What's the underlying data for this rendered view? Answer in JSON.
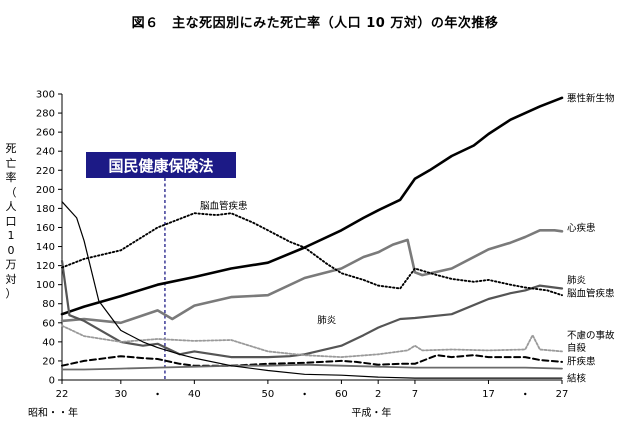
{
  "chart_data": {
    "type": "line",
    "title": "図６　主な死因別にみた死亡率（人口 10 万対）の年次推移",
    "ylabel": "死亡率（人口10万対）",
    "xlabel_showa": "昭和・・年",
    "xlabel_heisei": "平成・年",
    "ylim": [
      0,
      300
    ],
    "yticks": [
      "0",
      "20",
      "40",
      "60",
      "80",
      "100",
      "120",
      "140",
      "160",
      "180",
      "200",
      "220",
      "240",
      "260",
      "280",
      "300"
    ],
    "xlim": [
      1947,
      2015
    ],
    "xticks": [
      {
        "year": 1947,
        "label": "22"
      },
      {
        "year": 1955,
        "label": "30"
      },
      {
        "year": 1965,
        "label": "40"
      },
      {
        "year": 1975,
        "label": "50"
      },
      {
        "year": 1985,
        "label": "60"
      },
      {
        "year": 1990,
        "label": "2"
      },
      {
        "year": 1995,
        "label": "7"
      },
      {
        "year": 2005,
        "label": "17"
      },
      {
        "year": 2015,
        "label": "27"
      }
    ],
    "xdots": [
      1960,
      1980,
      2010
    ],
    "grid": false,
    "annotation": {
      "text": "国民健康保険法",
      "year": 1961
    },
    "series": [
      {
        "name": "悪性新生物",
        "color": "#000000",
        "width": 2.6,
        "dash": "",
        "x": [
          1947,
          1950,
          1955,
          1960,
          1965,
          1970,
          1975,
          1980,
          1985,
          1988,
          1990,
          1993,
          1995,
          1997,
          2000,
          2003,
          2005,
          2008,
          2010,
          2012,
          2015
        ],
        "y": [
          69,
          77,
          88,
          100,
          108,
          117,
          123,
          139,
          157,
          170,
          178,
          189,
          211,
          220,
          235,
          246,
          258,
          273,
          280,
          287,
          296
        ]
      },
      {
        "name": "心疾患",
        "color": "#7a7a7a",
        "width": 2.6,
        "dash": "",
        "x": [
          1947,
          1950,
          1955,
          1960,
          1962,
          1965,
          1970,
          1975,
          1980,
          1985,
          1988,
          1990,
          1992,
          1994,
          1995,
          1996,
          2000,
          2005,
          2008,
          2010,
          2012,
          2014,
          2015
        ],
        "y": [
          62,
          64,
          60,
          73,
          64,
          78,
          87,
          89,
          107,
          117,
          129,
          134,
          142,
          147,
          113,
          110,
          117,
          137,
          144,
          150,
          157,
          157,
          156
        ]
      },
      {
        "name": "肺炎",
        "color": "#555555",
        "width": 2.2,
        "dash": "",
        "x": [
          1947,
          1948,
          1950,
          1955,
          1958,
          1960,
          1963,
          1965,
          1970,
          1975,
          1978,
          1980,
          1985,
          1988,
          1990,
          1993,
          1995,
          2000,
          2005,
          2008,
          2010,
          2012,
          2015
        ],
        "y": [
          125,
          68,
          62,
          40,
          36,
          38,
          27,
          30,
          24,
          24,
          25,
          27,
          36,
          47,
          55,
          64,
          65,
          69,
          85,
          91,
          94,
          99,
          96
        ]
      },
      {
        "name": "脳血管疾患",
        "color": "#000000",
        "width": 1.9,
        "dash": "1.4 2.4",
        "x": [
          1947,
          1950,
          1955,
          1960,
          1965,
          1968,
          1970,
          1973,
          1975,
          1978,
          1980,
          1983,
          1985,
          1988,
          1990,
          1993,
          1995,
          1998,
          2000,
          2003,
          2005,
          2008,
          2010,
          2013,
          2015
        ],
        "y": [
          118,
          127,
          136,
          160,
          175,
          173,
          175,
          165,
          157,
          145,
          139,
          122,
          112,
          105,
          99,
          96,
          117,
          110,
          106,
          103,
          105,
          100,
          97,
          94,
          89
        ]
      },
      {
        "name": "不慮の事故",
        "color": "#9a9a9a",
        "width": 1.8,
        "dash": "2.2 1.8",
        "x": [
          1947,
          1950,
          1955,
          1960,
          1965,
          1970,
          1975,
          1980,
          1985,
          1990,
          1994,
          1995,
          1996,
          2000,
          2005,
          2010,
          2011,
          2012,
          2015
        ],
        "y": [
          57,
          46,
          40,
          43,
          41,
          42,
          30,
          26,
          24,
          27,
          31,
          36,
          31,
          32,
          31,
          32,
          47,
          32,
          30
        ]
      },
      {
        "name": "自殺",
        "color": "#000000",
        "width": 2.0,
        "dash": "6 3.5",
        "x": [
          1947,
          1950,
          1955,
          1958,
          1960,
          1963,
          1965,
          1970,
          1975,
          1980,
          1985,
          1987,
          1990,
          1993,
          1995,
          1998,
          2000,
          2003,
          2005,
          2010,
          2012,
          2015
        ],
        "y": [
          15,
          20,
          25,
          23,
          22,
          17,
          15,
          15,
          17,
          18,
          20,
          19,
          16,
          17,
          17,
          26,
          24,
          26,
          24,
          24,
          21,
          19
        ]
      },
      {
        "name": "肝疾患",
        "color": "#6a6a6a",
        "width": 1.8,
        "dash": "",
        "x": [
          1947,
          1950,
          1955,
          1960,
          1965,
          1970,
          1975,
          1980,
          1985,
          1990,
          1995,
          2000,
          2005,
          2010,
          2015
        ],
        "y": [
          11,
          11,
          12,
          13,
          14,
          15,
          15,
          16,
          15,
          14,
          13,
          13,
          13,
          13,
          12
        ]
      },
      {
        "name": "結核",
        "color": "#000000",
        "width": 1.2,
        "dash": "",
        "x": [
          1947,
          1949,
          1950,
          1952,
          1955,
          1958,
          1960,
          1963,
          1965,
          1970,
          1975,
          1980,
          1985,
          1990,
          1995,
          2000,
          2005,
          2010,
          2015
        ],
        "y": [
          187,
          170,
          146,
          83,
          52,
          40,
          34,
          27,
          23,
          15,
          10,
          6,
          5,
          3,
          2,
          2,
          2,
          2,
          2
        ]
      }
    ],
    "series_labels": [
      {
        "text": "悪性新生物",
        "ref_value": 296,
        "position": "right"
      },
      {
        "text": "心疾患",
        "ref_value": 160,
        "position": "right"
      },
      {
        "text": "肺炎",
        "ref_value": 105,
        "position": "right"
      },
      {
        "text": "脳血管疾患",
        "ref_value": 91,
        "position": "right"
      },
      {
        "text": "不慮の事故",
        "ref_value": 47,
        "position": "right"
      },
      {
        "text": "自殺",
        "ref_value": 34,
        "position": "right"
      },
      {
        "text": "肝疾患",
        "ref_value": 20,
        "position": "right"
      },
      {
        "text": "結核",
        "ref_value": 2,
        "position": "right"
      },
      {
        "text": "脳血管疾患",
        "ref_value": 183,
        "position": "inline",
        "year": 1969
      },
      {
        "text": "肺炎",
        "ref_value": 63,
        "position": "inline",
        "year": 1983
      }
    ]
  }
}
